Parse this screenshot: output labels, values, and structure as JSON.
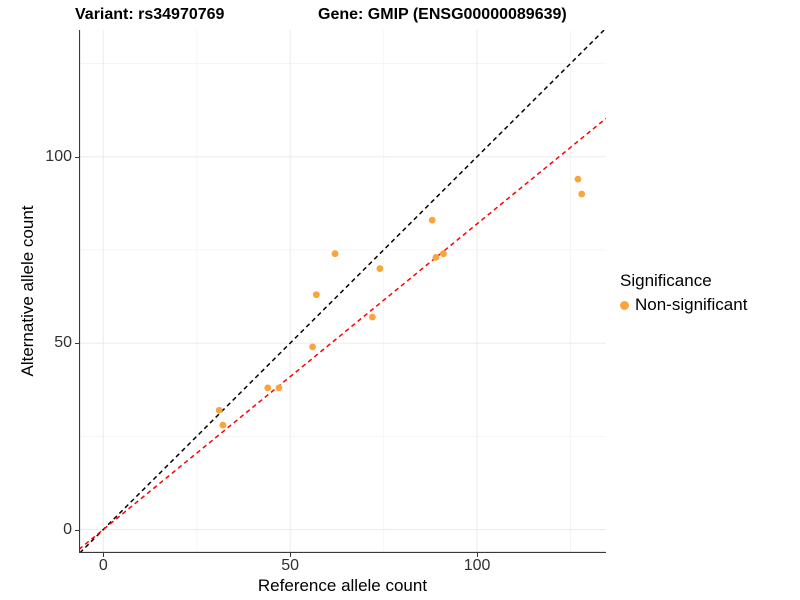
{
  "header": {
    "title_left": "Variant: rs34970769",
    "title_right": "Gene: GMIP (ENSG00000089639)"
  },
  "axes": {
    "x": {
      "label": "Reference allele count"
    },
    "y": {
      "label": "Alternative allele count"
    }
  },
  "legend": {
    "title": "Significance",
    "items": [
      {
        "label": "Non-significant",
        "color": "#FAA53C"
      }
    ]
  },
  "chart_data": {
    "type": "scatter",
    "title": "Variant: rs34970769 | Gene: GMIP (ENSG00000089639)",
    "xlabel": "Reference allele count",
    "ylabel": "Alternative allele count",
    "xlim": [
      -6.5,
      134.5
    ],
    "ylim": [
      -6.3,
      134.0
    ],
    "x_ticks": [
      0,
      50,
      100
    ],
    "y_ticks": [
      0,
      50,
      100
    ],
    "x_minor_ticks": [
      25,
      75,
      125
    ],
    "y_minor_ticks": [
      25,
      75,
      125
    ],
    "grid": true,
    "legend_position": "right",
    "legend_title": "Significance",
    "series": [
      {
        "name": "Non-significant",
        "color": "#FAA53C",
        "points": [
          [
            31,
            32
          ],
          [
            32,
            28
          ],
          [
            44,
            38
          ],
          [
            47,
            38
          ],
          [
            56,
            49
          ],
          [
            57,
            63
          ],
          [
            62,
            74
          ],
          [
            72,
            57
          ],
          [
            74,
            70
          ],
          [
            88,
            83
          ],
          [
            89,
            73
          ],
          [
            91,
            74
          ],
          [
            127,
            94
          ],
          [
            128,
            90
          ]
        ]
      }
    ],
    "lines": [
      {
        "name": "identity-line",
        "slope": 1.0,
        "intercept": 0,
        "color": "#000000",
        "style": "dashed"
      },
      {
        "name": "fitted-line",
        "slope": 0.82,
        "intercept": 0,
        "color": "#FF0000",
        "style": "dashed"
      }
    ],
    "colors": {
      "grid_major": "#EBEBEB",
      "grid_minor": "#F5F5F5",
      "axis_line": "#3a3a3a",
      "point": "#FAA53C"
    }
  }
}
